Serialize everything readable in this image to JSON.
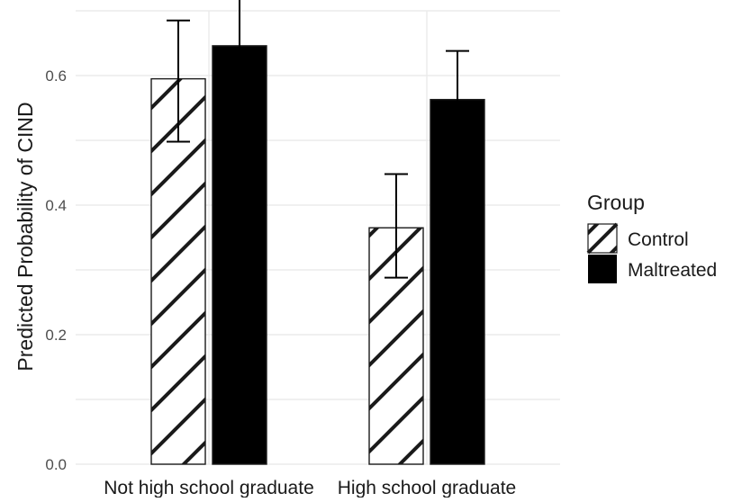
{
  "chart_data": {
    "type": "bar",
    "title": "",
    "xlabel": "",
    "ylabel": "Predicted Probability of CIND",
    "categories": [
      "Not high school graduate",
      "High school graduate"
    ],
    "series": [
      {
        "name": "Control",
        "values": [
          0.595,
          0.365
        ],
        "error_low": [
          0.498,
          0.288
        ],
        "error_high": [
          0.685,
          0.448
        ],
        "fill": "hatched"
      },
      {
        "name": "Maltreated",
        "values": [
          0.646,
          0.563
        ],
        "error_low": [
          0.573,
          0.487
        ],
        "error_high": [
          0.718,
          0.638
        ],
        "fill": "#000000"
      }
    ],
    "ylim": [
      0,
      0.7
    ],
    "yticks": [
      0.0,
      0.2,
      0.4,
      0.6
    ],
    "ytick_labels": [
      "0.0",
      "0.2",
      "0.4",
      "0.6"
    ],
    "grid": true,
    "legend": {
      "title": "Group",
      "position": "right"
    },
    "colors": {
      "grid": "#ebebeb",
      "bar_dark": "#000000",
      "hatch_bg": "#ffffff",
      "hatch_line": "#1a1a1a"
    }
  }
}
